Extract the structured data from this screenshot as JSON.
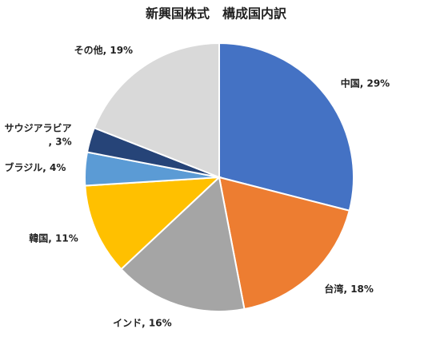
{
  "chart_data": {
    "type": "pie",
    "title": "新興国株式　構成国内訳",
    "categories": [
      "中国",
      "台湾",
      "インド",
      "韓国",
      "ブラジル",
      "サウジアラビア",
      "その他"
    ],
    "values": [
      29,
      18,
      16,
      11,
      4,
      3,
      19
    ],
    "value_labels": [
      "29%",
      "18%",
      "16%",
      "11%",
      "4%",
      "3%",
      "19%"
    ],
    "label_separator": ", ",
    "colors": [
      "#4472c4",
      "#ed7d31",
      "#a5a5a5",
      "#ffc000",
      "#5b9bd5",
      "#264478",
      "#d9d9d9"
    ]
  }
}
